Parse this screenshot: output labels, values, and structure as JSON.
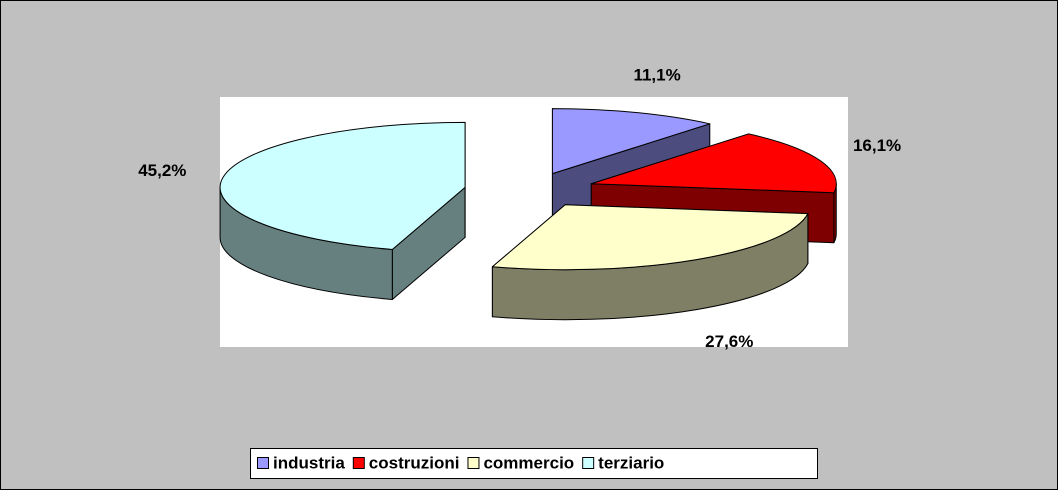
{
  "chart_data": {
    "type": "pie",
    "categories": [
      "industria",
      "costruzioni",
      "commercio",
      "terziario"
    ],
    "values": [
      11.1,
      16.1,
      27.6,
      45.2
    ],
    "value_labels": [
      "11,1%",
      "16,1%",
      "27,6%",
      "45,2%"
    ],
    "colors": [
      "#9999FF",
      "#FF0000",
      "#FFFFCC",
      "#CCFFFF"
    ],
    "legend": "bottom"
  }
}
